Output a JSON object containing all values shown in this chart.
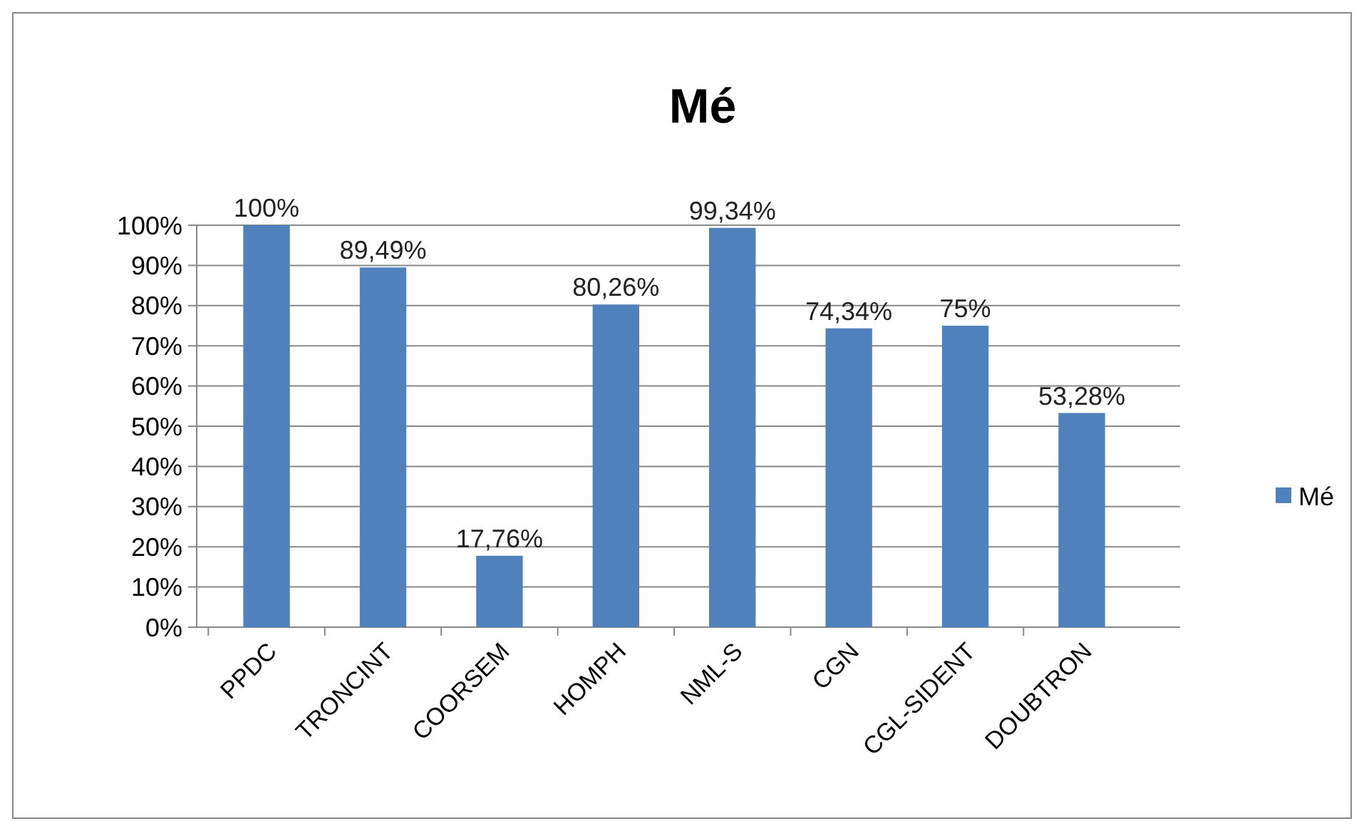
{
  "chart_data": {
    "type": "bar",
    "title": "Mé",
    "categories": [
      "PPDC",
      "TRONCINT",
      "COORSEM",
      "HOMPH",
      "NML-S",
      "CGN",
      "CGL-SIDENT",
      "DOUBTRON"
    ],
    "series": [
      {
        "name": "Mé",
        "color": "#4f81bd",
        "values": [
          100,
          89.49,
          17.76,
          80.26,
          99.34,
          74.34,
          75,
          53.28
        ],
        "value_labels": [
          "100%",
          "89,49%",
          "17,76%",
          "80,26%",
          "99,34%",
          "74,34%",
          "75%",
          "53,28%"
        ]
      }
    ],
    "ylim": [
      0,
      100
    ],
    "yticks": [
      {
        "value": 0,
        "label": "0%"
      },
      {
        "value": 10,
        "label": "10%"
      },
      {
        "value": 20,
        "label": "20%"
      },
      {
        "value": 30,
        "label": "30%"
      },
      {
        "value": 40,
        "label": "40%"
      },
      {
        "value": 50,
        "label": "50%"
      },
      {
        "value": 60,
        "label": "60%"
      },
      {
        "value": 70,
        "label": "70%"
      },
      {
        "value": 80,
        "label": "80%"
      },
      {
        "value": 90,
        "label": "90%"
      },
      {
        "value": 100,
        "label": "100%"
      }
    ],
    "grid": "y",
    "legend": "right"
  }
}
